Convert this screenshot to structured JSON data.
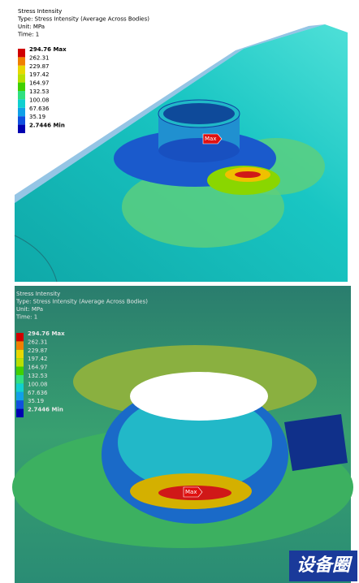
{
  "panels": [
    {
      "legend": {
        "title": "Stress Intensity",
        "type": "Type: Stress Intensity (Average Across Bodies)",
        "unit": "Unit: MPa",
        "time": "Time: 1",
        "levels": [
          "294.76 Max",
          "262.31",
          "229.87",
          "197.42",
          "164.97",
          "132.53",
          "100.08",
          "67.636",
          "35.19",
          "2.7446 Min"
        ]
      },
      "probe": "Max"
    },
    {
      "legend": {
        "title": "Stress Intensity",
        "type": "Type: Stress Intensity (Average Across Bodies)",
        "unit": "Unit: MPa",
        "time": "Time: 1",
        "levels": [
          "294.76 Max",
          "262.31",
          "229.87",
          "197.42",
          "164.97",
          "132.53",
          "100.08",
          "67.636",
          "35.19",
          "2.7446 Min"
        ]
      },
      "probe": "Max"
    }
  ],
  "watermark": "设备圈"
}
